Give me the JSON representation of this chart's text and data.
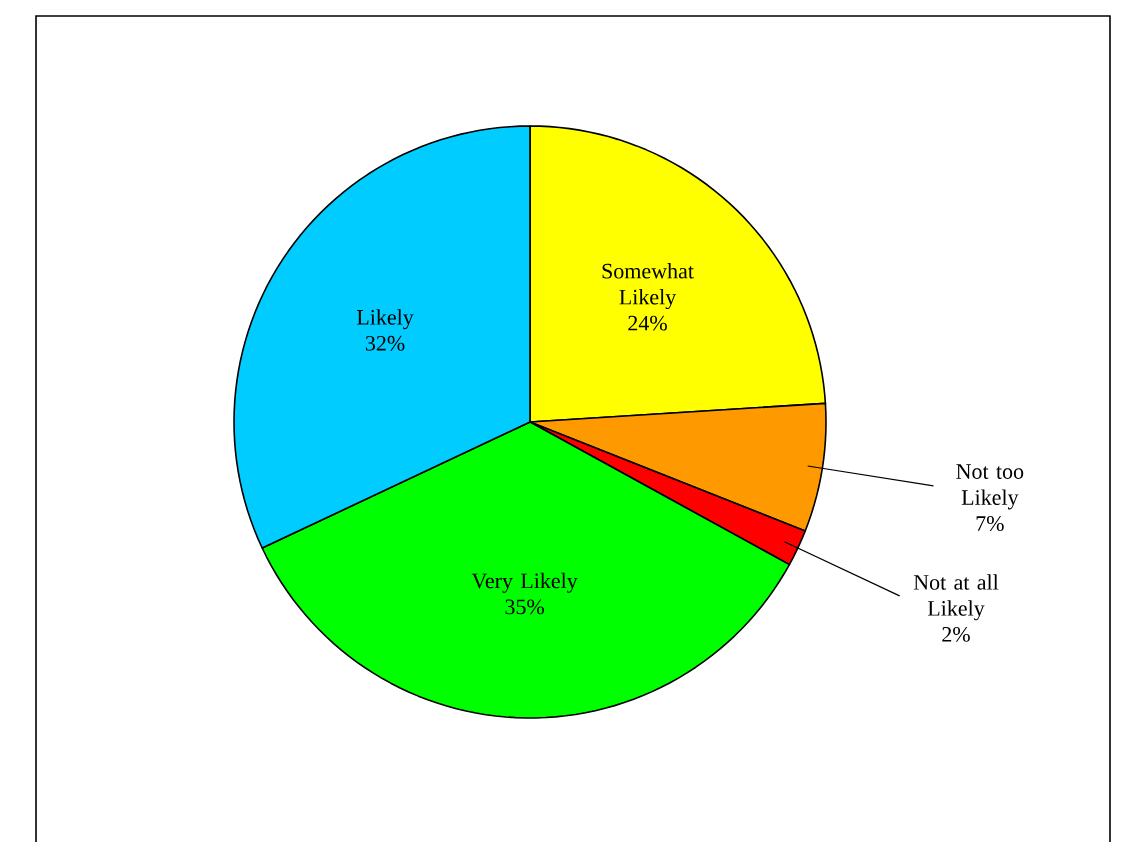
{
  "chart_data": {
    "type": "pie",
    "categories": [
      "Somewhat Likely",
      "Not too Likely",
      "Not at all Likely",
      "Very Likely",
      "Likely"
    ],
    "values": [
      24,
      7,
      2,
      35,
      32
    ],
    "colors": [
      "#ffff00",
      "#ff9900",
      "#ff0000",
      "#00ff00",
      "#00ccff"
    ],
    "value_labels": [
      "24%",
      "7%",
      "2%",
      "35%",
      "32%"
    ]
  }
}
